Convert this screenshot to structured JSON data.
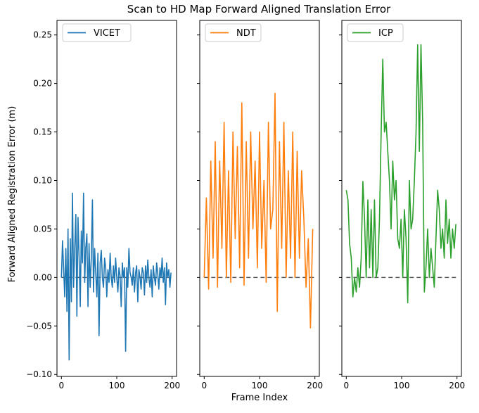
{
  "chart_data": {
    "type": "line",
    "title": "Scan to HD Map Forward Aligned Translation Error",
    "xlabel": "Frame Index",
    "ylabel": "Forward Aligned Registration Error (m)",
    "ylim": [
      -0.102,
      0.265
    ],
    "xlim": [
      -8,
      208
    ],
    "yticks": [
      -0.1,
      -0.05,
      0.0,
      0.05,
      0.1,
      0.15,
      0.2,
      0.25
    ],
    "ytick_labels": [
      "−0.10",
      "−0.05",
      "0.00",
      "0.05",
      "0.10",
      "0.15",
      "0.20",
      "0.25"
    ],
    "xticks": [
      0,
      100,
      200
    ],
    "xtick_labels": [
      "0",
      "100",
      "200"
    ],
    "reference_line": 0.0,
    "legend_position": "top-left",
    "grid": false,
    "series": [
      {
        "name": "VICET",
        "color": "#1f77b4",
        "x": [
          0,
          2,
          4,
          6,
          8,
          10,
          12,
          14,
          16,
          18,
          20,
          22,
          24,
          26,
          28,
          30,
          32,
          34,
          36,
          38,
          40,
          42,
          44,
          46,
          48,
          50,
          52,
          54,
          56,
          58,
          60,
          62,
          64,
          66,
          68,
          70,
          72,
          74,
          76,
          78,
          80,
          82,
          84,
          86,
          88,
          90,
          92,
          94,
          96,
          98,
          100,
          102,
          104,
          106,
          108,
          110,
          112,
          114,
          116,
          118,
          120,
          122,
          124,
          126,
          128,
          130,
          132,
          134,
          136,
          138,
          140,
          142,
          144,
          146,
          148,
          150,
          152,
          154,
          156,
          158,
          160,
          162,
          164,
          166,
          168,
          170,
          172,
          174,
          176,
          178,
          180,
          182,
          184,
          186,
          188,
          190,
          192,
          194,
          196,
          198
        ],
        "values": [
          0.0,
          0.038,
          0.01,
          -0.02,
          0.03,
          -0.035,
          0.05,
          -0.085,
          0.04,
          -0.025,
          0.087,
          -0.01,
          0.03,
          0.065,
          -0.04,
          0.062,
          0.02,
          -0.03,
          0.048,
          0.015,
          0.087,
          -0.005,
          0.03,
          0.045,
          -0.03,
          0.035,
          -0.01,
          0.02,
          0.08,
          -0.015,
          0.03,
          0.005,
          -0.02,
          0.025,
          -0.06,
          0.015,
          0.028,
          0.0,
          -0.01,
          0.02,
          0.01,
          -0.02,
          0.008,
          -0.005,
          0.025,
          0.0,
          -0.01,
          0.012,
          -0.005,
          0.02,
          0.0,
          -0.015,
          0.01,
          0.002,
          -0.03,
          0.015,
          0.0,
          0.01,
          -0.076,
          0.01,
          -0.01,
          0.03,
          0.005,
          0.0,
          -0.008,
          0.01,
          -0.015,
          0.005,
          0.012,
          -0.025,
          0.008,
          0.0,
          -0.012,
          0.01,
          0.005,
          -0.018,
          0.012,
          -0.005,
          0.018,
          0.0,
          -0.01,
          0.008,
          -0.02,
          0.012,
          0.0,
          -0.008,
          0.015,
          0.005,
          -0.012,
          0.01,
          0.0,
          0.02,
          -0.005,
          0.01,
          -0.028,
          0.015,
          0.0,
          0.008,
          -0.01,
          0.005
        ]
      },
      {
        "name": "NDT",
        "color": "#ff7f0e",
        "x": [
          0,
          4,
          8,
          12,
          16,
          20,
          24,
          28,
          32,
          36,
          40,
          44,
          48,
          52,
          56,
          60,
          64,
          68,
          72,
          76,
          80,
          84,
          88,
          92,
          96,
          100,
          104,
          108,
          112,
          116,
          120,
          124,
          128,
          132,
          136,
          140,
          144,
          148,
          152,
          156,
          160,
          164,
          168,
          172,
          176,
          180,
          184,
          188,
          192,
          196
        ],
        "values": [
          0.0,
          0.082,
          -0.012,
          0.12,
          0.02,
          0.14,
          -0.01,
          0.12,
          0.03,
          0.16,
          0.0,
          0.11,
          -0.005,
          0.15,
          0.04,
          0.135,
          0.01,
          0.18,
          -0.008,
          0.14,
          0.02,
          0.15,
          0.05,
          0.12,
          0.01,
          0.15,
          0.03,
          0.1,
          -0.005,
          0.16,
          0.05,
          0.07,
          0.19,
          -0.035,
          0.14,
          0.03,
          0.16,
          0.0,
          0.11,
          0.02,
          0.15,
          0.0,
          0.13,
          0.02,
          0.11,
          0.06,
          -0.01,
          0.04,
          -0.052,
          0.05
        ]
      },
      {
        "name": "ICP",
        "color": "#2ca02c",
        "x": [
          0,
          3,
          6,
          9,
          12,
          15,
          18,
          21,
          24,
          27,
          30,
          33,
          36,
          39,
          42,
          45,
          48,
          51,
          54,
          57,
          60,
          63,
          66,
          69,
          72,
          75,
          78,
          81,
          84,
          87,
          90,
          93,
          96,
          99,
          102,
          105,
          108,
          111,
          114,
          117,
          120,
          123,
          126,
          129,
          132,
          135,
          138,
          141,
          144,
          147,
          150,
          153,
          156,
          159,
          162,
          165,
          168,
          171,
          174,
          177,
          180,
          183,
          186,
          189,
          192,
          195,
          198
        ],
        "values": [
          0.09,
          0.08,
          0.035,
          0.02,
          -0.02,
          0.0,
          -0.015,
          0.01,
          -0.01,
          0.02,
          0.099,
          0.06,
          0.0,
          0.08,
          0.01,
          0.07,
          0.0,
          0.08,
          0.0,
          0.01,
          0.06,
          0.15,
          0.225,
          0.15,
          0.16,
          0.13,
          0.1,
          0.05,
          0.12,
          0.08,
          0.1,
          0.04,
          0.03,
          0.06,
          0.0,
          0.07,
          0.04,
          -0.026,
          0.1,
          0.05,
          0.06,
          0.1,
          0.15,
          0.24,
          0.13,
          0.24,
          0.16,
          -0.015,
          0.01,
          0.05,
          0.0,
          0.03,
          0.01,
          -0.01,
          0.04,
          0.09,
          0.07,
          0.03,
          0.05,
          0.02,
          0.08,
          0.035,
          0.06,
          0.02,
          0.05,
          0.03,
          0.055
        ]
      }
    ]
  }
}
